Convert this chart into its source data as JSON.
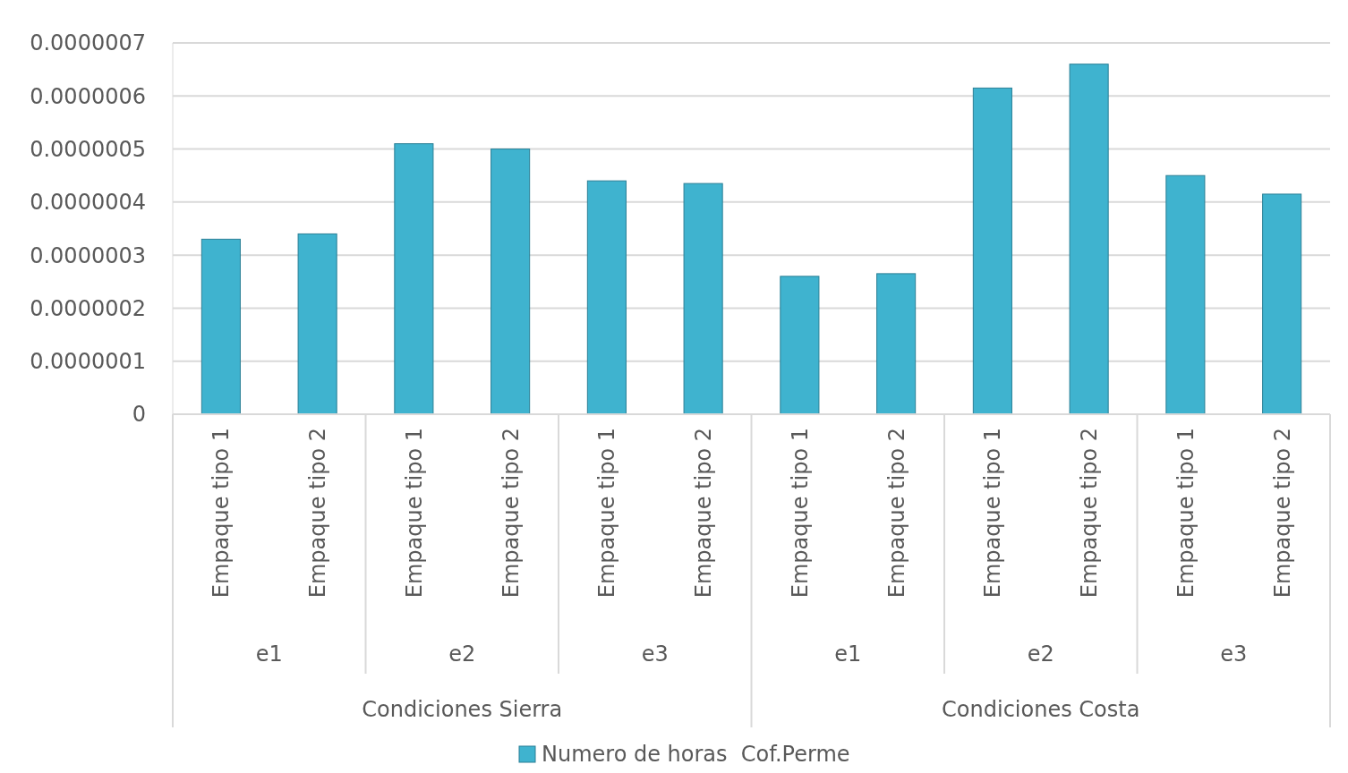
{
  "chart_data": {
    "type": "bar",
    "categories": [
      "Empaque tipo 1",
      "Empaque tipo 2",
      "Empaque tipo 1",
      "Empaque tipo 2",
      "Empaque tipo 1",
      "Empaque tipo 2",
      "Empaque tipo 1",
      "Empaque tipo 2",
      "Empaque tipo 1",
      "Empaque tipo 2",
      "Empaque tipo 1",
      "Empaque tipo 2"
    ],
    "series": [
      {
        "name": "Numero de horas  Cof.Perme",
        "color": "#3fb3cf",
        "values": [
          3.3e-07,
          3.4e-07,
          5.1e-07,
          5e-07,
          4.4e-07,
          4.35e-07,
          2.6e-07,
          2.65e-07,
          6.15e-07,
          6.6e-07,
          4.5e-07,
          4.15e-07
        ]
      }
    ],
    "ylim": [
      0,
      7e-07
    ],
    "yticks": [
      {
        "value": 0,
        "label": "0"
      },
      {
        "value": 1e-07,
        "label": "0.0000001"
      },
      {
        "value": 2e-07,
        "label": "0.0000002"
      },
      {
        "value": 3e-07,
        "label": "0.0000003"
      },
      {
        "value": 4e-07,
        "label": "0.0000004"
      },
      {
        "value": 5e-07,
        "label": "0.0000005"
      },
      {
        "value": 6e-07,
        "label": "0.0000006"
      },
      {
        "value": 7e-07,
        "label": "0.0000007"
      }
    ],
    "annotations": [
      "e1",
      "e2",
      "e3",
      "e1",
      "e2",
      "e3",
      "Condiciones Sierra",
      "Condiciones Costa"
    ],
    "grid": "y",
    "legend": "bottom"
  }
}
